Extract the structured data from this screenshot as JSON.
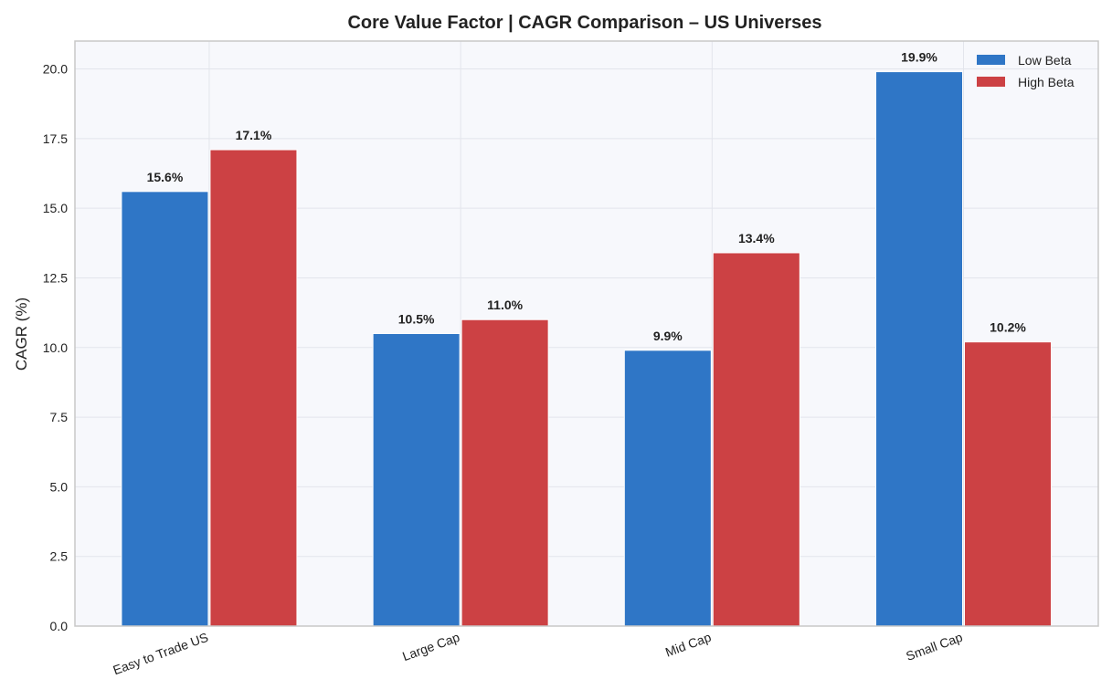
{
  "chart_data": {
    "type": "bar",
    "title": "Core Value Factor  |  CAGR Comparison  –  US Universes",
    "xlabel": "",
    "ylabel": "CAGR (%)",
    "ylim": [
      0,
      21
    ],
    "yticks": [
      "0.0",
      "2.5",
      "5.0",
      "7.5",
      "10.0",
      "12.5",
      "15.0",
      "17.5",
      "20.0"
    ],
    "categories": [
      "Easy to Trade US",
      "Large Cap",
      "Mid Cap",
      "Small Cap"
    ],
    "series": [
      {
        "name": "Low Beta",
        "color": "#2f76c6",
        "values": [
          15.6,
          10.5,
          9.9,
          19.9
        ],
        "labels": [
          "15.6%",
          "10.5%",
          "9.9%",
          "19.9%"
        ]
      },
      {
        "name": "High Beta",
        "color": "#cc4144",
        "values": [
          17.1,
          11.0,
          13.4,
          10.2
        ],
        "labels": [
          "17.1%",
          "11.0%",
          "13.4%",
          "10.2%"
        ]
      }
    ],
    "grid": true,
    "legend": "top-right",
    "background": "#f7f8fc"
  }
}
